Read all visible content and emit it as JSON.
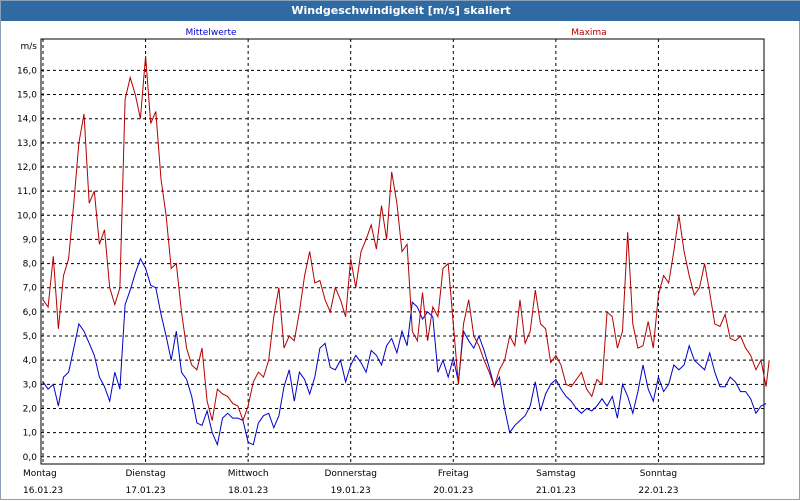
{
  "window": {
    "title": "Windgeschwindigkeit [m/s] skaliert"
  },
  "chart_data": {
    "type": "line",
    "title": "Windgeschwindigkeit [m/s] skaliert",
    "ylabel": "m/s",
    "ylim": [
      -0.3,
      17.3
    ],
    "xlim": [
      0,
      7
    ],
    "yticks": [
      "0,0",
      "1,0",
      "2,0",
      "3,0",
      "4,0",
      "5,0",
      "6,0",
      "7,0",
      "8,0",
      "9,0",
      "10,0",
      "11,0",
      "12,0",
      "13,0",
      "14,0",
      "15,0",
      "16,0"
    ],
    "xticks": [
      {
        "day": "Montag",
        "date": "16.01.23"
      },
      {
        "day": "Dienstag",
        "date": "17.01.23"
      },
      {
        "day": "Mittwoch",
        "date": "18.01.23"
      },
      {
        "day": "Donnerstag",
        "date": "19.01.23"
      },
      {
        "day": "Freitag",
        "date": "20.01.23"
      },
      {
        "day": "Samstag",
        "date": "21.01.23"
      },
      {
        "day": "Sonntag",
        "date": "22.01.23"
      }
    ],
    "grid": true,
    "series": [
      {
        "name": "Mittelwerte",
        "color": "#0000c8",
        "values": [
          [
            0,
            3.1
          ],
          [
            0.05,
            2.8
          ],
          [
            0.1,
            3.0
          ],
          [
            0.15,
            2.1
          ],
          [
            0.2,
            3.3
          ],
          [
            0.25,
            3.5
          ],
          [
            0.3,
            4.5
          ],
          [
            0.35,
            5.5
          ],
          [
            0.4,
            5.2
          ],
          [
            0.45,
            4.7
          ],
          [
            0.5,
            4.2
          ],
          [
            0.55,
            3.3
          ],
          [
            0.6,
            2.9
          ],
          [
            0.65,
            2.3
          ],
          [
            0.7,
            3.5
          ],
          [
            0.75,
            2.8
          ],
          [
            0.8,
            6.3
          ],
          [
            0.85,
            6.9
          ],
          [
            0.9,
            7.6
          ],
          [
            0.95,
            8.2
          ],
          [
            1.0,
            7.8
          ],
          [
            1.05,
            7.1
          ],
          [
            1.1,
            7.0
          ],
          [
            1.15,
            5.9
          ],
          [
            1.2,
            5.0
          ],
          [
            1.25,
            4.0
          ],
          [
            1.3,
            5.2
          ],
          [
            1.35,
            3.5
          ],
          [
            1.4,
            3.2
          ],
          [
            1.45,
            2.5
          ],
          [
            1.5,
            1.4
          ],
          [
            1.55,
            1.3
          ],
          [
            1.6,
            1.9
          ],
          [
            1.65,
            1.0
          ],
          [
            1.7,
            0.5
          ],
          [
            1.75,
            1.6
          ],
          [
            1.8,
            1.8
          ],
          [
            1.85,
            1.6
          ],
          [
            1.9,
            1.6
          ],
          [
            1.95,
            1.5
          ],
          [
            2.0,
            0.6
          ],
          [
            2.05,
            0.5
          ],
          [
            2.1,
            1.4
          ],
          [
            2.15,
            1.7
          ],
          [
            2.2,
            1.8
          ],
          [
            2.25,
            1.2
          ],
          [
            2.3,
            1.7
          ],
          [
            2.35,
            2.9
          ],
          [
            2.4,
            3.6
          ],
          [
            2.45,
            2.3
          ],
          [
            2.5,
            3.5
          ],
          [
            2.55,
            3.2
          ],
          [
            2.6,
            2.6
          ],
          [
            2.65,
            3.3
          ],
          [
            2.7,
            4.5
          ],
          [
            2.75,
            4.7
          ],
          [
            2.8,
            3.7
          ],
          [
            2.85,
            3.6
          ],
          [
            2.9,
            4.0
          ],
          [
            2.95,
            3.1
          ],
          [
            3.0,
            3.8
          ],
          [
            3.05,
            4.2
          ],
          [
            3.1,
            3.9
          ],
          [
            3.15,
            3.5
          ],
          [
            3.2,
            4.4
          ],
          [
            3.25,
            4.2
          ],
          [
            3.3,
            3.8
          ],
          [
            3.35,
            4.6
          ],
          [
            3.4,
            4.9
          ],
          [
            3.45,
            4.3
          ],
          [
            3.5,
            5.2
          ],
          [
            3.55,
            4.6
          ],
          [
            3.6,
            6.4
          ],
          [
            3.65,
            6.2
          ],
          [
            3.7,
            5.7
          ],
          [
            3.75,
            6.0
          ],
          [
            3.8,
            5.8
          ],
          [
            3.85,
            3.5
          ],
          [
            3.9,
            4.0
          ],
          [
            3.95,
            3.3
          ],
          [
            4.0,
            4.1
          ],
          [
            4.05,
            3.1
          ],
          [
            4.1,
            5.2
          ],
          [
            4.15,
            4.8
          ],
          [
            4.2,
            4.5
          ],
          [
            4.25,
            5.0
          ],
          [
            4.3,
            4.4
          ],
          [
            4.35,
            3.7
          ],
          [
            4.4,
            2.9
          ],
          [
            4.45,
            3.3
          ],
          [
            4.5,
            2.0
          ],
          [
            4.55,
            1.0
          ],
          [
            4.6,
            1.3
          ],
          [
            4.65,
            1.5
          ],
          [
            4.7,
            1.7
          ],
          [
            4.75,
            2.1
          ],
          [
            4.8,
            3.1
          ],
          [
            4.85,
            1.9
          ],
          [
            4.9,
            2.6
          ],
          [
            4.95,
            3.0
          ],
          [
            5.0,
            3.2
          ],
          [
            5.05,
            2.8
          ],
          [
            5.1,
            2.5
          ],
          [
            5.15,
            2.3
          ],
          [
            5.2,
            2.0
          ],
          [
            5.25,
            1.8
          ],
          [
            5.3,
            2.0
          ],
          [
            5.35,
            1.9
          ],
          [
            5.4,
            2.1
          ],
          [
            5.45,
            2.4
          ],
          [
            5.5,
            2.1
          ],
          [
            5.55,
            2.5
          ],
          [
            5.6,
            1.6
          ],
          [
            5.65,
            3.0
          ],
          [
            5.7,
            2.5
          ],
          [
            5.75,
            1.8
          ],
          [
            5.8,
            2.7
          ],
          [
            5.85,
            3.8
          ],
          [
            5.9,
            2.8
          ],
          [
            5.95,
            2.3
          ],
          [
            6.0,
            3.3
          ],
          [
            6.05,
            2.7
          ],
          [
            6.1,
            3.0
          ],
          [
            6.15,
            3.8
          ],
          [
            6.2,
            3.6
          ],
          [
            6.25,
            3.8
          ],
          [
            6.3,
            4.6
          ],
          [
            6.35,
            4.0
          ],
          [
            6.4,
            3.8
          ],
          [
            6.45,
            3.6
          ],
          [
            6.5,
            4.3
          ],
          [
            6.55,
            3.5
          ],
          [
            6.6,
            2.9
          ],
          [
            6.65,
            2.9
          ],
          [
            6.7,
            3.3
          ],
          [
            6.75,
            3.1
          ],
          [
            6.8,
            2.7
          ],
          [
            6.85,
            2.7
          ],
          [
            6.9,
            2.4
          ],
          [
            6.95,
            1.8
          ],
          [
            7.0,
            2.1
          ],
          [
            7.05,
            2.2
          ]
        ]
      },
      {
        "name": "Maxima",
        "color": "#b40000",
        "values": [
          [
            0,
            6.5
          ],
          [
            0.05,
            6.2
          ],
          [
            0.1,
            8.3
          ],
          [
            0.15,
            5.3
          ],
          [
            0.2,
            7.5
          ],
          [
            0.25,
            8.2
          ],
          [
            0.3,
            10.5
          ],
          [
            0.35,
            13.0
          ],
          [
            0.4,
            14.2
          ],
          [
            0.45,
            10.5
          ],
          [
            0.5,
            11.0
          ],
          [
            0.55,
            8.8
          ],
          [
            0.6,
            9.4
          ],
          [
            0.65,
            7.0
          ],
          [
            0.7,
            6.3
          ],
          [
            0.75,
            7.0
          ],
          [
            0.8,
            14.8
          ],
          [
            0.85,
            15.7
          ],
          [
            0.9,
            15.0
          ],
          [
            0.95,
            14.0
          ],
          [
            1.0,
            16.6
          ],
          [
            1.05,
            13.8
          ],
          [
            1.1,
            14.3
          ],
          [
            1.15,
            11.5
          ],
          [
            1.2,
            10.0
          ],
          [
            1.25,
            7.8
          ],
          [
            1.3,
            8.0
          ],
          [
            1.35,
            6.0
          ],
          [
            1.4,
            4.5
          ],
          [
            1.45,
            3.8
          ],
          [
            1.5,
            3.6
          ],
          [
            1.55,
            4.5
          ],
          [
            1.6,
            2.3
          ],
          [
            1.65,
            1.5
          ],
          [
            1.7,
            2.8
          ],
          [
            1.75,
            2.6
          ],
          [
            1.8,
            2.5
          ],
          [
            1.85,
            2.2
          ],
          [
            1.9,
            2.1
          ],
          [
            1.95,
            1.5
          ],
          [
            2.0,
            2.1
          ],
          [
            2.05,
            3.1
          ],
          [
            2.1,
            3.5
          ],
          [
            2.15,
            3.3
          ],
          [
            2.2,
            4.0
          ],
          [
            2.25,
            5.8
          ],
          [
            2.3,
            7.0
          ],
          [
            2.35,
            4.5
          ],
          [
            2.4,
            5.0
          ],
          [
            2.45,
            4.8
          ],
          [
            2.5,
            6.0
          ],
          [
            2.55,
            7.5
          ],
          [
            2.6,
            8.5
          ],
          [
            2.65,
            7.2
          ],
          [
            2.7,
            7.3
          ],
          [
            2.75,
            6.5
          ],
          [
            2.8,
            6.0
          ],
          [
            2.85,
            7.0
          ],
          [
            2.9,
            6.5
          ],
          [
            2.95,
            5.8
          ],
          [
            3.0,
            8.2
          ],
          [
            3.05,
            7.0
          ],
          [
            3.1,
            8.5
          ],
          [
            3.15,
            9.0
          ],
          [
            3.2,
            9.6
          ],
          [
            3.25,
            8.6
          ],
          [
            3.3,
            10.4
          ],
          [
            3.35,
            9.0
          ],
          [
            3.4,
            11.8
          ],
          [
            3.45,
            10.5
          ],
          [
            3.5,
            8.5
          ],
          [
            3.55,
            8.8
          ],
          [
            3.6,
            5.2
          ],
          [
            3.65,
            4.8
          ],
          [
            3.7,
            6.8
          ],
          [
            3.75,
            4.8
          ],
          [
            3.8,
            6.2
          ],
          [
            3.85,
            5.8
          ],
          [
            3.9,
            7.8
          ],
          [
            3.95,
            8.0
          ],
          [
            4.0,
            5.5
          ],
          [
            4.05,
            3.0
          ],
          [
            4.1,
            5.5
          ],
          [
            4.15,
            6.5
          ],
          [
            4.2,
            5.0
          ],
          [
            4.25,
            4.6
          ],
          [
            4.3,
            4.0
          ],
          [
            4.35,
            3.5
          ],
          [
            4.4,
            2.9
          ],
          [
            4.45,
            3.6
          ],
          [
            4.5,
            4.0
          ],
          [
            4.55,
            5.0
          ],
          [
            4.6,
            4.6
          ],
          [
            4.65,
            6.5
          ],
          [
            4.7,
            4.7
          ],
          [
            4.75,
            5.2
          ],
          [
            4.8,
            6.9
          ],
          [
            4.85,
            5.5
          ],
          [
            4.9,
            5.3
          ],
          [
            4.95,
            3.9
          ],
          [
            5.0,
            4.2
          ],
          [
            5.05,
            3.8
          ],
          [
            5.1,
            3.0
          ],
          [
            5.15,
            2.9
          ],
          [
            5.2,
            3.2
          ],
          [
            5.25,
            3.5
          ],
          [
            5.3,
            2.8
          ],
          [
            5.35,
            2.5
          ],
          [
            5.4,
            3.2
          ],
          [
            5.45,
            3.0
          ],
          [
            5.5,
            6.0
          ],
          [
            5.55,
            5.8
          ],
          [
            5.6,
            4.5
          ],
          [
            5.65,
            5.2
          ],
          [
            5.7,
            9.3
          ],
          [
            5.75,
            5.5
          ],
          [
            5.8,
            4.5
          ],
          [
            5.85,
            4.6
          ],
          [
            5.9,
            5.6
          ],
          [
            5.95,
            4.5
          ],
          [
            6.0,
            6.7
          ],
          [
            6.05,
            7.5
          ],
          [
            6.1,
            7.2
          ],
          [
            6.15,
            8.5
          ],
          [
            6.2,
            10.0
          ],
          [
            6.25,
            8.5
          ],
          [
            6.3,
            7.5
          ],
          [
            6.35,
            6.7
          ],
          [
            6.4,
            7.0
          ],
          [
            6.45,
            8.0
          ],
          [
            6.5,
            6.8
          ],
          [
            6.55,
            5.5
          ],
          [
            6.6,
            5.4
          ],
          [
            6.65,
            5.9
          ],
          [
            6.7,
            4.9
          ],
          [
            6.75,
            4.8
          ],
          [
            6.8,
            5.0
          ],
          [
            6.85,
            4.5
          ],
          [
            6.9,
            4.2
          ],
          [
            6.95,
            3.6
          ],
          [
            7.0,
            4.0
          ],
          [
            7.05,
            2.9
          ],
          [
            7.08,
            4.0
          ]
        ]
      }
    ]
  }
}
